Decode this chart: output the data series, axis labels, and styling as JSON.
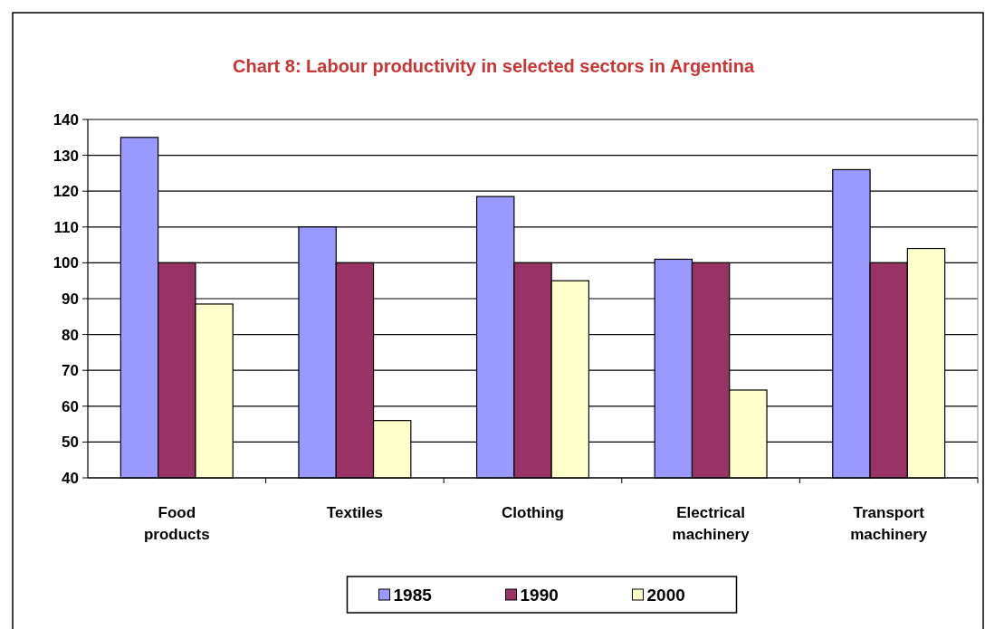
{
  "chart_data": {
    "type": "bar",
    "title": "Chart 8: Labour productivity in selected sectors in Argentina",
    "categories": [
      "Food products",
      "Textiles",
      "Clothing",
      "Electrical machinery",
      "Transport machinery"
    ],
    "series": [
      {
        "name": "1985",
        "color": "#9999ff",
        "values": [
          135,
          110,
          118.5,
          101,
          126
        ]
      },
      {
        "name": "1990",
        "color": "#993366",
        "values": [
          100,
          100,
          100,
          100,
          100
        ]
      },
      {
        "name": "2000",
        "color": "#ffffcc",
        "values": [
          88.5,
          56,
          95,
          64.5,
          104
        ]
      }
    ],
    "ylim": [
      40,
      140
    ],
    "yticks": [
      40,
      50,
      60,
      70,
      80,
      90,
      100,
      110,
      120,
      130,
      140
    ],
    "grid": "y",
    "legend": "bottom"
  }
}
